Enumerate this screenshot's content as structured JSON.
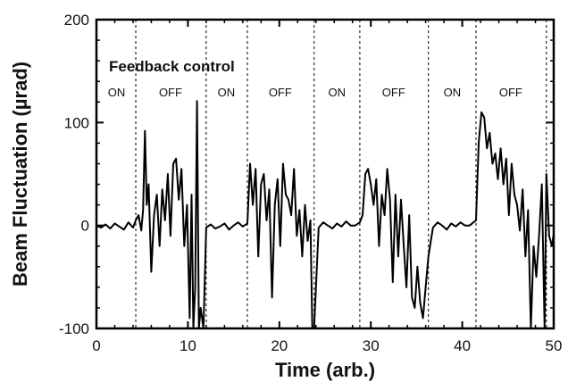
{
  "chart_data": {
    "type": "line",
    "title": "Feedback control",
    "xlabel": "Time (arb.)",
    "ylabel": "Beam Fluctuation (µrad)",
    "xlim": [
      0,
      50
    ],
    "ylim": [
      -100,
      200
    ],
    "x_ticks": [
      "0",
      "10",
      "20",
      "30",
      "40",
      "50"
    ],
    "y_ticks": [
      "-100",
      "0",
      "100",
      "200"
    ],
    "x_tick_values": [
      0,
      10,
      20,
      30,
      40,
      50
    ],
    "y_tick_values": [
      -100,
      0,
      100,
      200
    ],
    "grid": false,
    "phase_boundaries": [
      4.3,
      12.0,
      16.5,
      23.8,
      28.8,
      36.3,
      41.5,
      49.2
    ],
    "phases": [
      {
        "label": "ON",
        "x": 2.2
      },
      {
        "label": "OFF",
        "x": 8.1
      },
      {
        "label": "ON",
        "x": 14.2
      },
      {
        "label": "OFF",
        "x": 20.1
      },
      {
        "label": "ON",
        "x": 26.3
      },
      {
        "label": "OFF",
        "x": 32.5
      },
      {
        "label": "ON",
        "x": 38.9
      },
      {
        "label": "OFF",
        "x": 45.3
      }
    ],
    "series": [
      {
        "x": [
          0,
          0.5,
          1.0,
          1.5,
          2.0,
          2.5,
          3.0,
          3.5,
          4.0,
          4.3,
          4.6,
          4.9,
          5.1,
          5.3,
          5.5,
          5.7,
          6.0,
          6.3,
          6.6,
          6.9,
          7.2,
          7.5,
          7.8,
          8.1,
          8.4,
          8.7,
          9.0,
          9.3,
          9.6,
          9.9,
          10.2,
          10.4,
          10.6,
          10.8,
          11.0,
          11.2,
          11.4,
          11.7,
          12.0,
          12.5,
          13.0,
          13.5,
          14.0,
          14.5,
          15.0,
          15.5,
          16.0,
          16.5,
          16.8,
          17.1,
          17.4,
          17.7,
          18.0,
          18.3,
          18.6,
          18.9,
          19.2,
          19.5,
          19.8,
          20.1,
          20.4,
          20.7,
          21.0,
          21.3,
          21.6,
          21.9,
          22.2,
          22.5,
          22.8,
          23.1,
          23.4,
          23.6,
          23.8,
          24.3,
          24.8,
          25.3,
          25.8,
          26.3,
          26.8,
          27.3,
          27.8,
          28.3,
          28.8,
          29.1,
          29.4,
          29.7,
          30.0,
          30.3,
          30.6,
          30.9,
          31.2,
          31.5,
          31.8,
          32.1,
          32.4,
          32.7,
          33.0,
          33.3,
          33.6,
          33.9,
          34.2,
          34.5,
          34.8,
          35.1,
          35.4,
          35.7,
          36.0,
          36.3,
          36.8,
          37.3,
          37.8,
          38.3,
          38.8,
          39.3,
          39.8,
          40.3,
          40.8,
          41.5,
          41.8,
          42.1,
          42.4,
          42.7,
          43.0,
          43.3,
          43.6,
          43.9,
          44.2,
          44.5,
          44.8,
          45.1,
          45.4,
          45.7,
          46.0,
          46.3,
          46.6,
          46.9,
          47.2,
          47.5,
          47.8,
          48.1,
          48.4,
          48.7,
          49.0,
          49.2,
          49.5,
          49.8,
          50.0
        ],
        "y": [
          0,
          -2,
          1,
          -3,
          2,
          -1,
          -4,
          3,
          -2,
          5,
          10,
          -5,
          15,
          92,
          20,
          40,
          -45,
          10,
          30,
          -20,
          35,
          5,
          50,
          -10,
          60,
          65,
          25,
          55,
          -20,
          20,
          -90,
          30,
          -100,
          -60,
          121,
          -100,
          -80,
          -100,
          -2,
          1,
          -3,
          -1,
          2,
          -4,
          0,
          3,
          -1,
          2,
          60,
          20,
          55,
          -30,
          40,
          50,
          5,
          35,
          -70,
          20,
          45,
          -20,
          60,
          30,
          25,
          10,
          55,
          -10,
          15,
          -30,
          20,
          -15,
          5,
          -100,
          -100,
          -2,
          3,
          0,
          -3,
          2,
          -1,
          4,
          0,
          0,
          3,
          10,
          50,
          55,
          40,
          20,
          45,
          -20,
          30,
          10,
          55,
          25,
          -55,
          30,
          -30,
          25,
          -20,
          -60,
          10,
          -70,
          -80,
          -40,
          -75,
          -90,
          -60,
          -30,
          -2,
          3,
          0,
          -4,
          2,
          -1,
          3,
          0,
          0,
          5,
          80,
          110,
          105,
          75,
          90,
          60,
          70,
          45,
          75,
          40,
          65,
          10,
          60,
          30,
          20,
          -5,
          35,
          -30,
          15,
          -100,
          -20,
          -50,
          -10,
          40,
          -100,
          50,
          -10,
          -20,
          -8
        ]
      }
    ]
  }
}
